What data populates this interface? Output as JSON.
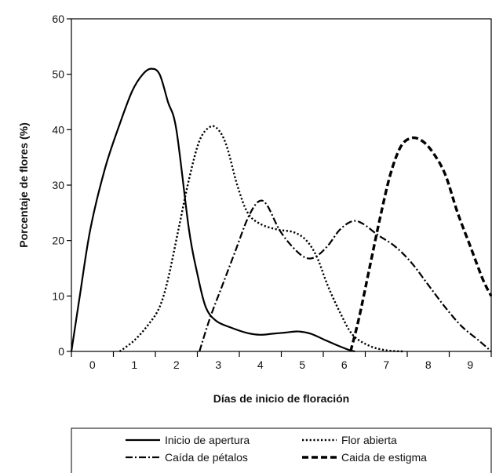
{
  "chart_data": {
    "type": "line",
    "title": "",
    "xlabel": "Días de inicio de floración",
    "ylabel": "Porcentaje de flores (%)",
    "xlim": [
      -0.5,
      9.5
    ],
    "ylim": [
      0,
      60
    ],
    "x_ticks": [
      0,
      1,
      2,
      3,
      4,
      5,
      6,
      7,
      8,
      9
    ],
    "y_ticks": [
      0,
      10,
      20,
      30,
      40,
      50,
      60
    ],
    "grid": false,
    "legend_position": "bottom",
    "series": [
      {
        "name": "Inicio de apertura",
        "color": "#000000",
        "style": "solid",
        "points": [
          [
            -0.5,
            0
          ],
          [
            -0.3,
            10
          ],
          [
            -0.05,
            22
          ],
          [
            0.3,
            33
          ],
          [
            0.65,
            41
          ],
          [
            0.95,
            47
          ],
          [
            1.2,
            50
          ],
          [
            1.4,
            51
          ],
          [
            1.6,
            50
          ],
          [
            1.8,
            45
          ],
          [
            2.0,
            40
          ],
          [
            2.3,
            22
          ],
          [
            2.5,
            14
          ],
          [
            2.7,
            8
          ],
          [
            2.95,
            5.5
          ],
          [
            3.3,
            4.3
          ],
          [
            3.7,
            3.3
          ],
          [
            4.0,
            3.0
          ],
          [
            4.3,
            3.2
          ],
          [
            4.6,
            3.4
          ],
          [
            4.9,
            3.6
          ],
          [
            5.2,
            3.2
          ],
          [
            5.5,
            2.2
          ],
          [
            5.8,
            1.2
          ],
          [
            6.1,
            0.3
          ],
          [
            6.25,
            0
          ]
        ]
      },
      {
        "name": "Flor abierta",
        "color": "#000000",
        "style": "dotted",
        "points": [
          [
            0.65,
            0
          ],
          [
            1.0,
            2
          ],
          [
            1.35,
            5
          ],
          [
            1.6,
            8
          ],
          [
            1.8,
            13
          ],
          [
            2.05,
            22
          ],
          [
            2.3,
            31
          ],
          [
            2.55,
            38
          ],
          [
            2.8,
            40.5
          ],
          [
            3.0,
            40
          ],
          [
            3.2,
            37
          ],
          [
            3.45,
            30
          ],
          [
            3.7,
            25
          ],
          [
            4.0,
            23
          ],
          [
            4.4,
            22
          ],
          [
            4.8,
            21.5
          ],
          [
            5.1,
            20
          ],
          [
            5.35,
            17
          ],
          [
            5.6,
            12
          ],
          [
            5.9,
            7
          ],
          [
            6.2,
            3
          ],
          [
            6.6,
            1
          ],
          [
            7.0,
            0.2
          ],
          [
            7.4,
            0
          ]
        ]
      },
      {
        "name": "Caída de pétalos",
        "color": "#000000",
        "style": "dashdot",
        "points": [
          [
            2.55,
            0
          ],
          [
            2.8,
            6
          ],
          [
            3.1,
            12
          ],
          [
            3.4,
            18
          ],
          [
            3.7,
            24
          ],
          [
            3.95,
            27
          ],
          [
            4.15,
            26.5
          ],
          [
            4.45,
            22
          ],
          [
            4.75,
            19
          ],
          [
            5.05,
            17
          ],
          [
            5.3,
            17
          ],
          [
            5.6,
            19
          ],
          [
            5.9,
            22
          ],
          [
            6.2,
            23.5
          ],
          [
            6.45,
            23
          ],
          [
            6.8,
            21
          ],
          [
            7.2,
            19
          ],
          [
            7.6,
            16
          ],
          [
            8.0,
            12
          ],
          [
            8.4,
            8
          ],
          [
            8.8,
            4.5
          ],
          [
            9.2,
            2
          ],
          [
            9.5,
            0
          ]
        ]
      },
      {
        "name": "Caida de estigma",
        "color": "#000000",
        "style": "dashed",
        "points": [
          [
            6.15,
            0
          ],
          [
            6.35,
            6
          ],
          [
            6.6,
            15
          ],
          [
            6.85,
            24
          ],
          [
            7.1,
            32
          ],
          [
            7.35,
            37
          ],
          [
            7.6,
            38.5
          ],
          [
            7.85,
            38
          ],
          [
            8.1,
            36
          ],
          [
            8.4,
            32
          ],
          [
            8.7,
            25
          ],
          [
            9.0,
            19
          ],
          [
            9.3,
            13
          ],
          [
            9.5,
            10
          ]
        ]
      }
    ]
  }
}
